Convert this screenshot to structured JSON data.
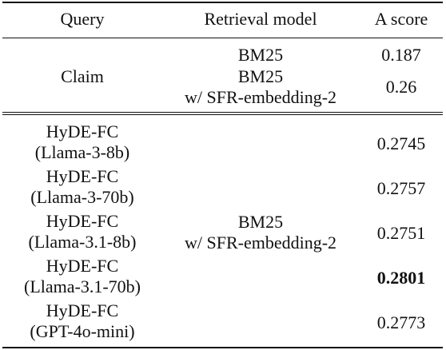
{
  "header": {
    "query": "Query",
    "model": "Retrieval model",
    "score": "A score"
  },
  "section1": {
    "query": "Claim",
    "rows": [
      {
        "model_line1": "BM25",
        "model_line2": "",
        "score": "0.187"
      },
      {
        "model_line1": "BM25",
        "model_line2": "w/ SFR-embedding-2",
        "score": "0.26"
      }
    ]
  },
  "section2": {
    "model_line1": "BM25",
    "model_line2": "w/ SFR-embedding-2",
    "rows": [
      {
        "query_line1": "HyDE-FC",
        "query_line2": "(Llama-3-8b)",
        "score": "0.2745",
        "bold": false
      },
      {
        "query_line1": "HyDE-FC",
        "query_line2": "(Llama-3-70b)",
        "score": "0.2757",
        "bold": false
      },
      {
        "query_line1": "HyDE-FC",
        "query_line2": "(Llama-3.1-8b)",
        "score": "0.2751",
        "bold": false
      },
      {
        "query_line1": "HyDE-FC",
        "query_line2": "(Llama-3.1-70b)",
        "score": "0.2801",
        "bold": true
      },
      {
        "query_line1": "HyDE-FC",
        "query_line2": "(GPT-4o-mini)",
        "score": "0.2773",
        "bold": false
      }
    ]
  }
}
